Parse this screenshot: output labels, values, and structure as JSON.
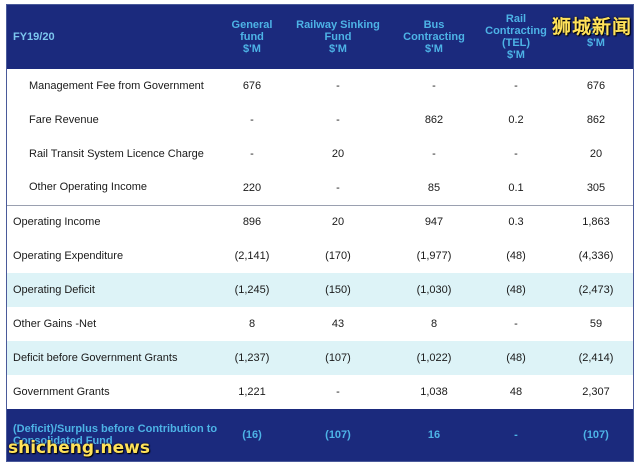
{
  "table": {
    "headers": [
      "FY19/20",
      "General\nfund\n$'M",
      "Railway Sinking\nFund\n$'M",
      "Bus\nContracting\n$'M",
      "Rail Contracting\n(TEL)\n$'M",
      "Total\n$'M"
    ],
    "rows": [
      {
        "label": "Management Fee from Government",
        "cells": [
          "676",
          "-",
          "-",
          "-",
          "676"
        ],
        "indent": true
      },
      {
        "label": "Fare Revenue",
        "cells": [
          "-",
          "-",
          "862",
          "0.2",
          "862"
        ],
        "indent": true
      },
      {
        "label": "Rail Transit System Licence Charge",
        "cells": [
          "-",
          "20",
          "-",
          "-",
          "20"
        ],
        "indent": true
      },
      {
        "label": "Other Operating Income",
        "cells": [
          "220",
          "-",
          "85",
          "0.1",
          "305"
        ],
        "indent": true
      },
      {
        "label": "Operating Income",
        "cells": [
          "896",
          "20",
          "947",
          "0.3",
          "1,863"
        ]
      },
      {
        "label": "Operating Expenditure",
        "cells": [
          "(2,141)",
          "(170)",
          "(1,977)",
          "(48)",
          "(4,336)"
        ]
      },
      {
        "label": "Operating Deficit",
        "cells": [
          "(1,245)",
          "(150)",
          "(1,030)",
          "(48)",
          "(2,473)"
        ],
        "highlight": true
      },
      {
        "label": "Other Gains -Net",
        "cells": [
          "8",
          "43",
          "8",
          "-",
          "59"
        ]
      },
      {
        "label": "Deficit before Government Grants",
        "cells": [
          "(1,237)",
          "(107)",
          "(1,022)",
          "(48)",
          "(2,414)"
        ],
        "highlight": true
      },
      {
        "label": "Government Grants",
        "cells": [
          "1,221",
          "-",
          "1,038",
          "48",
          "2,307"
        ]
      }
    ],
    "footer": {
      "label": "(Deficit)/Surplus before Contribution to Consolidated Fund",
      "cells": [
        "(16)",
        "(107)",
        "16",
        "-",
        "(107)"
      ]
    }
  },
  "watermarks": {
    "top": "狮城新闻",
    "bottom": "shicheng.news"
  }
}
